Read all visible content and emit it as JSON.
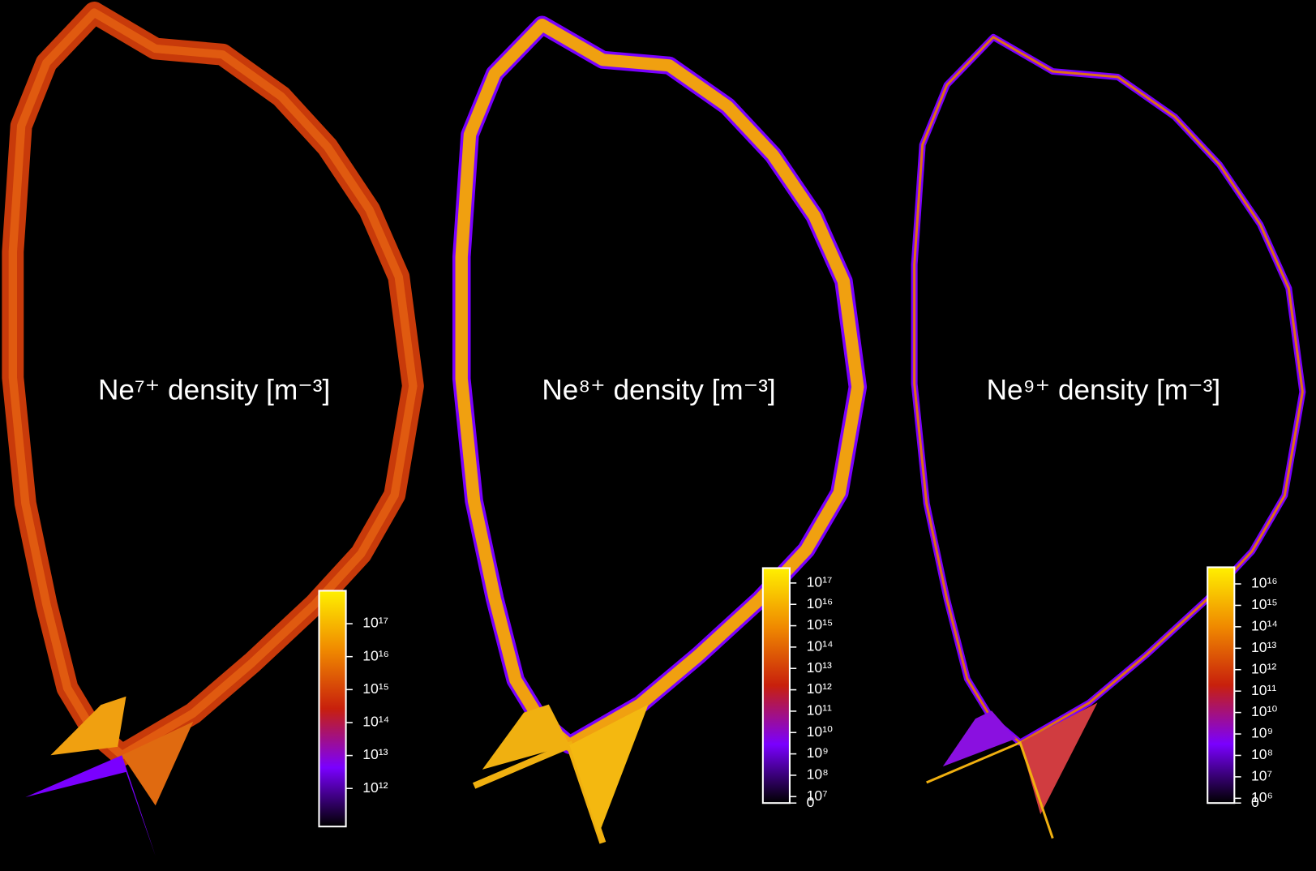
{
  "chart_data": [
    {
      "type": "heatmap",
      "title": "Ne⁷⁺ density [m⁻³]",
      "log": true,
      "zlim": [
        70000000000,
        1000000000000000000
      ],
      "zticks": [
        {
          "value": 1000000000000,
          "label": "10¹²"
        },
        {
          "value": 10000000000000,
          "label": "10¹³"
        },
        {
          "value": 100000000000000,
          "label": "10¹⁴"
        },
        {
          "value": 1000000000000000,
          "label": "10¹⁵"
        },
        {
          "value": 10000000000000000,
          "label": "10¹⁶"
        },
        {
          "value": 100000000000000000,
          "label": "10¹⁷"
        }
      ]
    },
    {
      "type": "heatmap",
      "title": "Ne⁸⁺ density [m⁻³]",
      "log": true,
      "zlim": [
        5000000,
        500000000000000000
      ],
      "zticks": [
        0,
        {
          "value": 10000000,
          "label": "10⁷"
        },
        {
          "value": 100000000,
          "label": "10⁸"
        },
        {
          "value": 1000000000,
          "label": "10⁹"
        },
        {
          "value": 10000000000,
          "label": "10¹⁰"
        },
        {
          "value": 100000000000,
          "label": "10¹¹"
        },
        {
          "value": 1000000000000,
          "label": "10¹²"
        },
        {
          "value": 10000000000000,
          "label": "10¹³"
        },
        {
          "value": 100000000000000,
          "label": "10¹⁴"
        },
        {
          "value": 1000000000000000,
          "label": "10¹⁵"
        },
        {
          "value": 10000000000000000,
          "label": "10¹⁶"
        },
        {
          "value": 100000000000000000,
          "label": "10¹⁷"
        }
      ]
    },
    {
      "type": "heatmap",
      "title": "Ne⁹⁺ density [m⁻³]",
      "log": true,
      "zlim": [
        600000,
        60000000000000000
      ],
      "zticks": [
        0,
        {
          "value": 1000000,
          "label": "10⁶"
        },
        {
          "value": 10000000,
          "label": "10⁷"
        },
        {
          "value": 100000000,
          "label": "10⁸"
        },
        {
          "value": 1000000000,
          "label": "10⁹"
        },
        {
          "value": 10000000000,
          "label": "10¹⁰"
        },
        {
          "value": 100000000000,
          "label": "10¹¹"
        },
        {
          "value": 1000000000000,
          "label": "10¹²"
        },
        {
          "value": 10000000000000,
          "label": "10¹³"
        },
        {
          "value": 100000000000000,
          "label": "10¹⁴"
        },
        {
          "value": 1000000000000000,
          "label": "10¹⁵"
        },
        {
          "value": 10000000000000000,
          "label": "10¹⁶"
        }
      ]
    }
  ]
}
